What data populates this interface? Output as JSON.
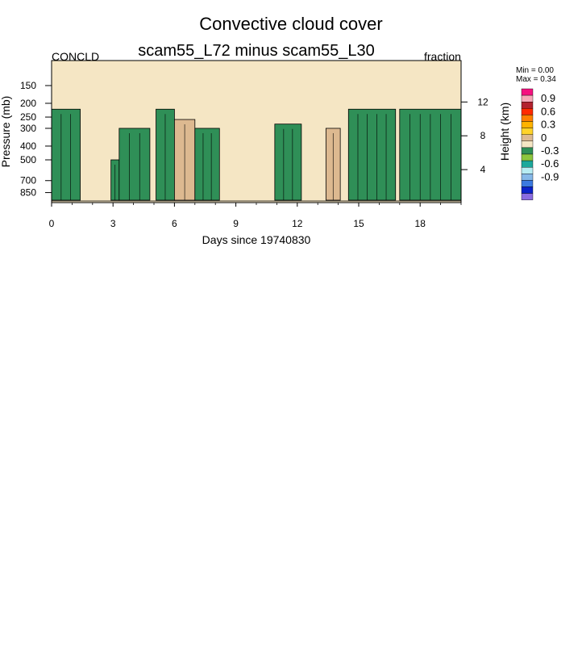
{
  "title": "Convective cloud cover",
  "subtitle": "scam55_L72 minus scam55_L30",
  "left_label": "CONCLD",
  "right_label": "fraction",
  "stats": {
    "min": "Min =   0.00",
    "max": "Max =   0.34"
  },
  "colors": {
    "background_fill": "#f5e6c4",
    "positive_small": "#ddb990",
    "negative_small": "#2f8f57",
    "negative_mid": "#8cc63e",
    "contour_line": "#000000"
  },
  "chart_data": {
    "type": "heatmap",
    "title": "Convective cloud cover",
    "subtitle": "scam55_L72 minus scam55_L30",
    "variable": "CONCLD",
    "units": "fraction",
    "xlabel": "Days since 19740830",
    "ylabel": "Pressure (mb)",
    "ylabel_right": "Height (km)",
    "xlim": [
      0,
      20
    ],
    "x_ticks": [
      "0",
      "3",
      "6",
      "9",
      "12",
      "15",
      "18"
    ],
    "x_tick_values": [
      0,
      3,
      6,
      9,
      12,
      15,
      18
    ],
    "y_ticks": [
      "150",
      "200",
      "250",
      "300",
      "400",
      "500",
      "700",
      "850"
    ],
    "y_tick_values": [
      150,
      200,
      250,
      300,
      400,
      500,
      700,
      850
    ],
    "ylim_mb": [
      1000,
      100
    ],
    "y_right_ticks": [
      "12",
      "8",
      "4"
    ],
    "y_right_tick_values": [
      12,
      8,
      4
    ],
    "colorbar_labels": [
      "0.9",
      "0.6",
      "0.3",
      "0",
      "-0.3",
      "-0.6",
      "-0.9"
    ],
    "colorbar_colors": [
      "#f4117f",
      "#f7a8b8",
      "#b2222f",
      "#ff2a00",
      "#ff7f00",
      "#ffb300",
      "#ffd32a",
      "#ddb990",
      "#f5e6c4",
      "#2f8f57",
      "#8cc63e",
      "#1ca89b",
      "#b7ecf2",
      "#86b8e8",
      "#3b7ae0",
      "#0b22c9",
      "#8a6be0"
    ],
    "features": [
      {
        "kind": "convective_column",
        "x0": 0.0,
        "x1": 1.4,
        "p_top": 220,
        "value": -0.1
      },
      {
        "kind": "convective_column",
        "x0": 2.9,
        "x1": 3.3,
        "p_top": 500,
        "value": -0.1
      },
      {
        "kind": "convective_column",
        "x0": 3.3,
        "x1": 4.8,
        "p_top": 300,
        "value": -0.1
      },
      {
        "kind": "convective_column",
        "x0": 5.1,
        "x1": 6.0,
        "p_top": 220,
        "value": -0.1
      },
      {
        "kind": "convective_column",
        "x0": 6.0,
        "x1": 7.0,
        "p_top": 260,
        "value": 0.05
      },
      {
        "kind": "convective_column",
        "x0": 7.0,
        "x1": 8.2,
        "p_top": 300,
        "value": -0.1
      },
      {
        "kind": "convective_column",
        "x0": 10.9,
        "x1": 12.2,
        "p_top": 280,
        "value": -0.1
      },
      {
        "kind": "convective_column",
        "x0": 13.4,
        "x1": 14.1,
        "p_top": 300,
        "value": 0.05
      },
      {
        "kind": "convective_column",
        "x0": 14.5,
        "x1": 16.8,
        "p_top": 220,
        "value": -0.1
      },
      {
        "kind": "convective_column",
        "x0": 17.0,
        "x1": 20.0,
        "p_top": 220,
        "value": -0.1
      }
    ]
  }
}
